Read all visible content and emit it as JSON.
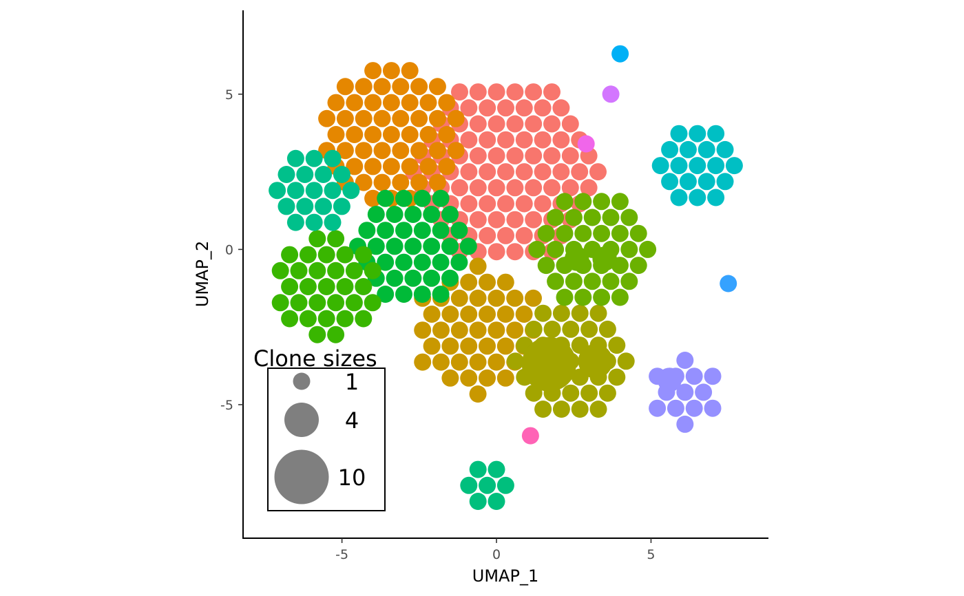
{
  "chart_data": {
    "type": "scatter",
    "title": "",
    "xlabel": "UMAP_1",
    "ylabel": "UMAP_2",
    "xlim": [
      -8.2,
      8.8
    ],
    "ylim": [
      -9.3,
      7.7
    ],
    "x_ticks": [
      -5,
      0,
      5
    ],
    "x_tick_labels": [
      "-5",
      "0",
      "5"
    ],
    "y_ticks": [
      5,
      0,
      -5
    ],
    "y_tick_labels": [
      "5",
      "0",
      "-5"
    ],
    "grid": false,
    "legend": {
      "title": "Clone sizes",
      "placement": "inside-bottom-left",
      "sizes": [
        1,
        4,
        10
      ],
      "labels": [
        "1",
        "4",
        "10"
      ],
      "symbol_color": "#7f7f7f"
    },
    "clusters": [
      {
        "color": "#F8766D",
        "center": [
          0.3,
          2.5
        ],
        "count": 140,
        "radius": 3.0,
        "shape": "disc"
      },
      {
        "color": "#E58700",
        "center": [
          -3.4,
          3.7
        ],
        "count": 68,
        "radius": 2.3,
        "shape": "disc"
      },
      {
        "color": "#C99800",
        "center": [
          -0.6,
          -2.6
        ],
        "count": 62,
        "radius": 2.1,
        "shape": "disc"
      },
      {
        "color": "#A3A500",
        "center": [
          2.4,
          -3.6
        ],
        "count": 46,
        "radius": 1.9,
        "shape": "disc"
      },
      {
        "color": "#6BB100",
        "center": [
          3.1,
          0.0
        ],
        "count": 52,
        "radius": 1.9,
        "shape": "disc"
      },
      {
        "color": "#00BA38",
        "center": [
          -2.7,
          0.1
        ],
        "count": 40,
        "radius": 1.8,
        "shape": "disc"
      },
      {
        "color": "#39B600",
        "center": [
          -5.5,
          -1.2
        ],
        "count": 46,
        "radius": 1.6,
        "shape": "disc"
      },
      {
        "color": "#00C08B",
        "center": [
          -5.9,
          1.9
        ],
        "count": 24,
        "radius": 1.2,
        "shape": "disc"
      },
      {
        "color": "#00BFC4",
        "center": [
          6.5,
          2.7
        ],
        "count": 28,
        "radius": 1.4,
        "shape": "disc"
      },
      {
        "color": "#00BF7D",
        "center": [
          -0.3,
          -7.6
        ],
        "count": 12,
        "radius": 0.9,
        "shape": "disc"
      },
      {
        "color": "#9590FF",
        "center": [
          6.1,
          -4.6
        ],
        "count": 14,
        "radius": 1.1,
        "shape": "disc"
      },
      {
        "color": "#00B0F6",
        "center": [
          4.0,
          6.3
        ],
        "count": 5,
        "radius": 0.5,
        "shape": "disc"
      },
      {
        "color": "#D376FF",
        "center": [
          3.7,
          5.0
        ],
        "count": 4,
        "radius": 0.5,
        "shape": "disc"
      },
      {
        "color": "#F066EA",
        "center": [
          2.9,
          3.4
        ],
        "count": 4,
        "radius": 0.5,
        "shape": "disc"
      },
      {
        "color": "#FF63B6",
        "center": [
          1.1,
          -6.0
        ],
        "count": 3,
        "radius": 0.4,
        "shape": "disc"
      },
      {
        "color": "#35A2FF",
        "center": [
          7.5,
          -1.1
        ],
        "count": 1,
        "radius": 0.1,
        "shape": "disc"
      }
    ],
    "large_points": [
      {
        "color": "#A3A500",
        "x": 1.7,
        "y": -3.7,
        "size": 10
      },
      {
        "color": "#A3A500",
        "x": 3.2,
        "y": -3.6,
        "size": 4
      },
      {
        "color": "#6BB100",
        "x": 2.6,
        "y": -0.3,
        "size": 2
      },
      {
        "color": "#6BB100",
        "x": 3.5,
        "y": -0.3,
        "size": 2
      },
      {
        "color": "#9590FF",
        "x": 5.6,
        "y": -4.2,
        "size": 2
      }
    ]
  }
}
